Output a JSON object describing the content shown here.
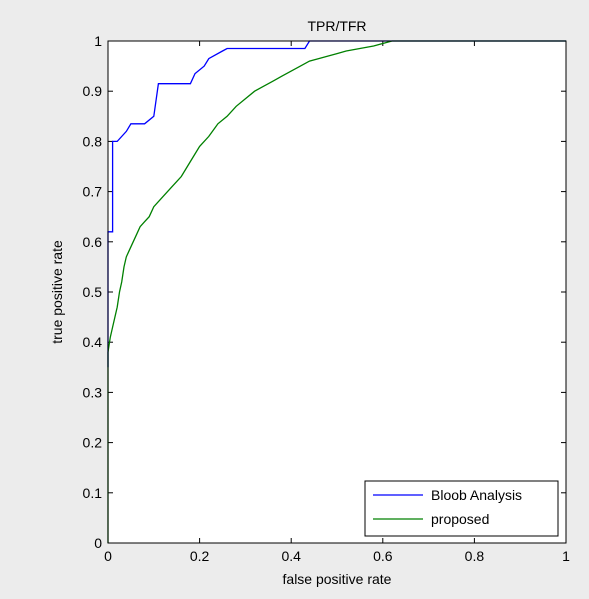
{
  "chart_data": {
    "type": "line",
    "title": "TPR/TFR",
    "xlabel": "false positive rate",
    "ylabel": "true positive rate",
    "xlim": [
      0,
      1
    ],
    "ylim": [
      0,
      1
    ],
    "xticks": [
      "0",
      "0.2",
      "0.4",
      "0.6",
      "0.8",
      "1"
    ],
    "xtick_values": [
      0,
      0.2,
      0.4,
      0.6,
      0.8,
      1
    ],
    "yticks": [
      "0",
      "0.1",
      "0.2",
      "0.3",
      "0.4",
      "0.5",
      "0.6",
      "0.7",
      "0.8",
      "0.9",
      "1"
    ],
    "ytick_values": [
      0,
      0.1,
      0.2,
      0.3,
      0.4,
      0.5,
      0.6,
      0.7,
      0.8,
      0.9,
      1
    ],
    "grid": false,
    "legend_position": "bottom-right",
    "series": [
      {
        "name": "Bloob Analysis",
        "color": "#0000ff",
        "x": [
          0,
          0,
          0.01,
          0.01,
          0.02,
          0.04,
          0.05,
          0.08,
          0.1,
          0.11,
          0.18,
          0.19,
          0.21,
          0.22,
          0.25,
          0.26,
          0.43,
          0.44,
          0.61,
          0.62,
          1.0
        ],
        "y": [
          0.35,
          0.62,
          0.62,
          0.8,
          0.8,
          0.82,
          0.835,
          0.835,
          0.85,
          0.915,
          0.915,
          0.935,
          0.95,
          0.965,
          0.98,
          0.985,
          0.985,
          1.0,
          1.0,
          1.0,
          1.0
        ]
      },
      {
        "name": "proposed",
        "color": "#008000",
        "x": [
          0,
          0,
          0.005,
          0.01,
          0.015,
          0.02,
          0.025,
          0.03,
          0.035,
          0.04,
          0.05,
          0.06,
          0.07,
          0.08,
          0.09,
          0.1,
          0.12,
          0.14,
          0.15,
          0.16,
          0.18,
          0.2,
          0.22,
          0.24,
          0.26,
          0.28,
          0.3,
          0.32,
          0.34,
          0.36,
          0.38,
          0.4,
          0.42,
          0.44,
          0.46,
          0.48,
          0.5,
          0.52,
          0.55,
          0.58,
          0.6,
          0.62,
          0.7,
          0.8,
          1.0
        ],
        "y": [
          0,
          0.38,
          0.41,
          0.43,
          0.45,
          0.47,
          0.5,
          0.52,
          0.55,
          0.57,
          0.59,
          0.61,
          0.63,
          0.64,
          0.65,
          0.67,
          0.69,
          0.71,
          0.72,
          0.73,
          0.76,
          0.79,
          0.81,
          0.835,
          0.85,
          0.87,
          0.885,
          0.9,
          0.91,
          0.92,
          0.93,
          0.94,
          0.95,
          0.96,
          0.965,
          0.97,
          0.975,
          0.98,
          0.985,
          0.99,
          0.995,
          1.0,
          1.0,
          1.0,
          1.0
        ]
      }
    ]
  }
}
